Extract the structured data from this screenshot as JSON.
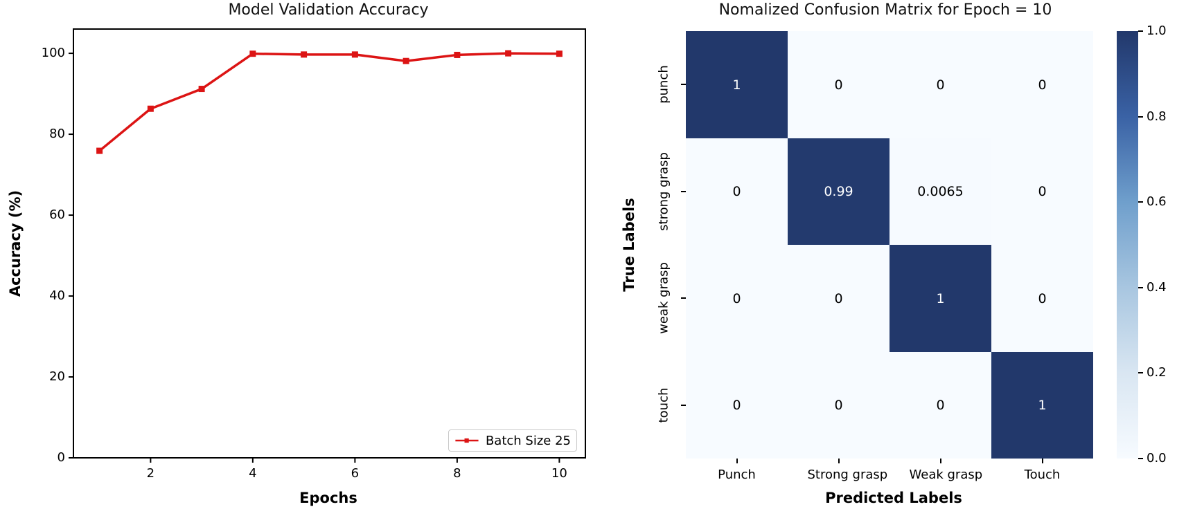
{
  "figure": {
    "background": "#ffffff",
    "text_color": "#000000"
  },
  "chart_data": [
    {
      "type": "line",
      "title": "Model Validation Accuracy",
      "xlabel": "Epochs",
      "ylabel": "Accuracy (%)",
      "x": [
        1,
        2,
        3,
        4,
        5,
        6,
        7,
        8,
        9,
        10
      ],
      "series": [
        {
          "name": "Batch Size 25",
          "values": [
            75.9,
            86.3,
            91.2,
            99.9,
            99.7,
            99.7,
            98.1,
            99.6,
            100,
            99.9
          ],
          "color": "#dc1414",
          "marker": "square"
        }
      ],
      "x_ticks": [
        2,
        4,
        6,
        8,
        10
      ],
      "y_ticks": [
        0,
        20,
        40,
        60,
        80,
        100
      ],
      "xlim": [
        0.49,
        10.51
      ],
      "ylim": [
        0,
        106
      ],
      "grid": false,
      "legend_position": "lower right"
    },
    {
      "type": "heatmap",
      "title": "Nomalized Confusion Matrix for Epoch = 10",
      "xlabel": "Predicted Labels",
      "ylabel": "True Labels",
      "x_categories": [
        "Punch",
        "Strong grasp",
        "Weak grasp",
        "Touch"
      ],
      "y_categories": [
        "punch",
        "strong grasp",
        "weak grasp",
        "touch"
      ],
      "values": [
        [
          1,
          0,
          0,
          0
        ],
        [
          0,
          0.99,
          0.0065,
          0
        ],
        [
          0,
          0,
          1,
          0
        ],
        [
          0,
          0,
          0,
          1
        ]
      ],
      "cell_labels": [
        [
          "1",
          "0",
          "0",
          "0"
        ],
        [
          "0",
          "0.99",
          "0.0065",
          "0"
        ],
        [
          "0",
          "0",
          "1",
          "0"
        ],
        [
          "0",
          "0",
          "0",
          "1"
        ]
      ],
      "colorbar": {
        "min": 0,
        "max": 1,
        "tick_labels": [
          "1.0",
          "0.8",
          "0.6",
          "0.4",
          "0.2",
          "0.0"
        ],
        "stops": [
          "#f7fbff",
          "#d9e6f2",
          "#a8c6e0",
          "#6f9fcc",
          "#3a62a5",
          "#22386b"
        ]
      },
      "cell_text_colors": {
        "dark_cell": "#ffffff",
        "light_cell": "#000000"
      }
    }
  ]
}
